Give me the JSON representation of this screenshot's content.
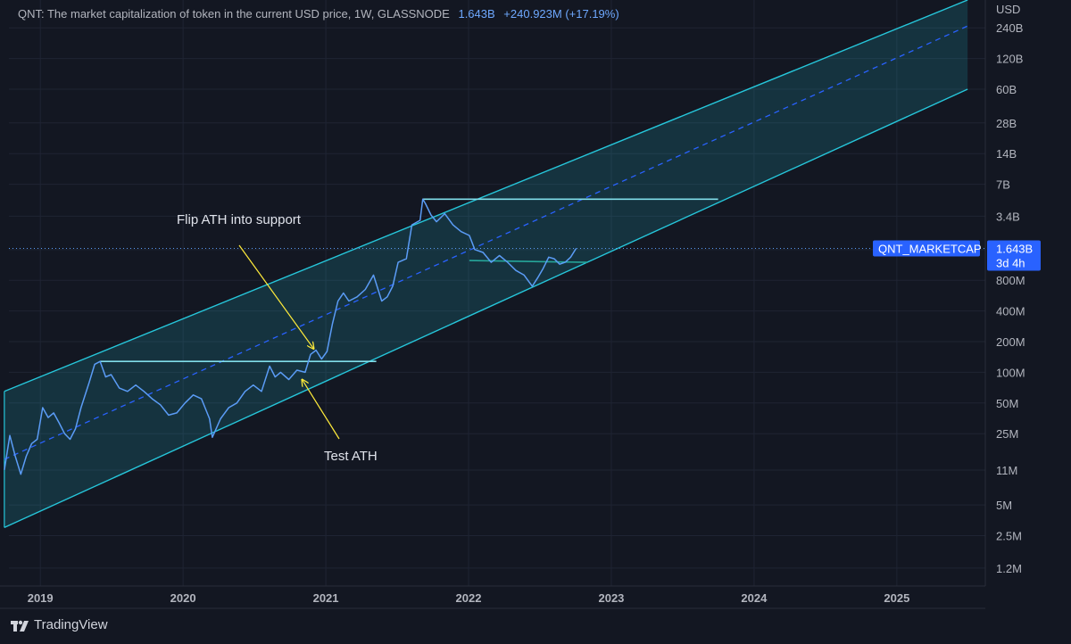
{
  "header": {
    "title": "QNT: The market capitalization of token in the current USD price, 1W, GLASSNODE",
    "last_value": "1.643B",
    "change": "+240.923M (+17.19%)"
  },
  "brand": {
    "label": "TradingView"
  },
  "colors": {
    "background": "#131722",
    "series": "#5b9cf6",
    "channel": "#26c6da",
    "ath_line": "#80deea",
    "support_line": "#26a69a",
    "midline": "#2962ff",
    "arrow": "#ffeb3b",
    "price_tag": "#2962ff"
  },
  "chart_data": {
    "type": "line",
    "title": "QNT: The market capitalization of token in the current USD price, 1W, GLASSNODE",
    "y_scale": "log",
    "y_unit": "USD",
    "y_tick_labels": [
      "240B",
      "120B",
      "60B",
      "28B",
      "14B",
      "7B",
      "3.4B",
      "1.6B",
      "800M",
      "400M",
      "200M",
      "100M",
      "50M",
      "25M",
      "11M",
      "5M",
      "2.5M",
      "1.2M"
    ],
    "y_tick_values": [
      240000000000.0,
      120000000000.0,
      60000000000.0,
      28000000000.0,
      14000000000.0,
      7000000000.0,
      3400000000.0,
      1600000000.0,
      800000000.0,
      400000000.0,
      200000000.0,
      100000000.0,
      50000000.0,
      25000000.0,
      11000000.0,
      5000000.0,
      2500000.0,
      1200000.0
    ],
    "x_tick_labels": [
      "2019",
      "2020",
      "2021",
      "2022",
      "2023",
      "2024",
      "2025"
    ],
    "x_range": [
      2018.78,
      2025.62
    ],
    "y_range": [
      800000.0,
      450000000000.0
    ],
    "grid": true,
    "series": [
      {
        "name": "QNT_MARKETCAP",
        "last_value": "1.643B",
        "countdown": "3d 4h",
        "points": [
          [
            "2018-10-01",
            11000000.0
          ],
          [
            "2018-10-15",
            24000000.0
          ],
          [
            "2018-10-29",
            15000000.0
          ],
          [
            "2018-11-12",
            10000000.0
          ],
          [
            "2018-11-26",
            15000000.0
          ],
          [
            "2018-12-10",
            20000000.0
          ],
          [
            "2018-12-24",
            22000000.0
          ],
          [
            "2019-01-07",
            45000000.0
          ],
          [
            "2019-01-21",
            36000000.0
          ],
          [
            "2019-02-04",
            40000000.0
          ],
          [
            "2019-02-18",
            32000000.0
          ],
          [
            "2019-03-04",
            25000000.0
          ],
          [
            "2019-03-18",
            22000000.0
          ],
          [
            "2019-04-01",
            28000000.0
          ],
          [
            "2019-04-15",
            45000000.0
          ],
          [
            "2019-05-06",
            80000000.0
          ],
          [
            "2019-05-20",
            120000000.0
          ],
          [
            "2019-06-03",
            128000000.0
          ],
          [
            "2019-06-17",
            90000000.0
          ],
          [
            "2019-07-01",
            95000000.0
          ],
          [
            "2019-07-22",
            70000000.0
          ],
          [
            "2019-08-12",
            65000000.0
          ],
          [
            "2019-09-02",
            75000000.0
          ],
          [
            "2019-09-23",
            65000000.0
          ],
          [
            "2019-10-14",
            55000000.0
          ],
          [
            "2019-11-04",
            48000000.0
          ],
          [
            "2019-11-25",
            38000000.0
          ],
          [
            "2019-12-16",
            40000000.0
          ],
          [
            "2020-01-06",
            50000000.0
          ],
          [
            "2020-01-27",
            60000000.0
          ],
          [
            "2020-02-17",
            55000000.0
          ],
          [
            "2020-03-09",
            35000000.0
          ],
          [
            "2020-03-16",
            23000000.0
          ],
          [
            "2020-04-06",
            35000000.0
          ],
          [
            "2020-04-27",
            45000000.0
          ],
          [
            "2020-05-18",
            50000000.0
          ],
          [
            "2020-06-08",
            65000000.0
          ],
          [
            "2020-06-29",
            75000000.0
          ],
          [
            "2020-07-20",
            65000000.0
          ],
          [
            "2020-08-10",
            115000000.0
          ],
          [
            "2020-08-24",
            90000000.0
          ],
          [
            "2020-09-07",
            100000000.0
          ],
          [
            "2020-09-28",
            85000000.0
          ],
          [
            "2020-10-19",
            105000000.0
          ],
          [
            "2020-11-09",
            100000000.0
          ],
          [
            "2020-11-23",
            150000000.0
          ],
          [
            "2020-12-07",
            165000000.0
          ],
          [
            "2020-12-21",
            135000000.0
          ],
          [
            "2021-01-04",
            160000000.0
          ],
          [
            "2021-01-18",
            300000000.0
          ],
          [
            "2021-02-01",
            500000000.0
          ],
          [
            "2021-02-15",
            600000000.0
          ],
          [
            "2021-03-01",
            500000000.0
          ],
          [
            "2021-03-22",
            550000000.0
          ],
          [
            "2021-04-12",
            650000000.0
          ],
          [
            "2021-05-03",
            900000000.0
          ],
          [
            "2021-05-24",
            500000000.0
          ],
          [
            "2021-06-07",
            550000000.0
          ],
          [
            "2021-06-21",
            700000000.0
          ],
          [
            "2021-07-05",
            1200000000.0
          ],
          [
            "2021-07-26",
            1300000000.0
          ],
          [
            "2021-08-09",
            2800000000.0
          ],
          [
            "2021-08-30",
            3100000000.0
          ],
          [
            "2021-09-06",
            5000000000.0
          ],
          [
            "2021-09-13",
            4500000000.0
          ],
          [
            "2021-09-27",
            3500000000.0
          ],
          [
            "2021-10-11",
            3000000000.0
          ],
          [
            "2021-11-01",
            3600000000.0
          ],
          [
            "2021-11-22",
            2800000000.0
          ],
          [
            "2021-12-13",
            2400000000.0
          ],
          [
            "2022-01-03",
            2200000000.0
          ],
          [
            "2022-01-17",
            1600000000.0
          ],
          [
            "2022-02-07",
            1500000000.0
          ],
          [
            "2022-02-28",
            1200000000.0
          ],
          [
            "2022-03-21",
            1400000000.0
          ],
          [
            "2022-04-11",
            1200000000.0
          ],
          [
            "2022-05-02",
            1000000000.0
          ],
          [
            "2022-05-23",
            900000000.0
          ],
          [
            "2022-06-13",
            700000000.0
          ],
          [
            "2022-06-27",
            850000000.0
          ],
          [
            "2022-07-11",
            1050000000.0
          ],
          [
            "2022-07-25",
            1350000000.0
          ],
          [
            "2022-08-08",
            1300000000.0
          ],
          [
            "2022-08-22",
            1150000000.0
          ],
          [
            "2022-09-05",
            1200000000.0
          ],
          [
            "2022-09-19",
            1350000000.0
          ],
          [
            "2022-10-03",
            1643000000.0
          ]
        ]
      }
    ],
    "annotations": {
      "channel_upper": [
        [
          "2018-10-01",
          65000000.0
        ],
        [
          "2025-07-01",
          450000000000.0
        ]
      ],
      "channel_lower": [
        [
          "2018-10-01",
          3000000.0
        ],
        [
          "2025-07-01",
          60000000000.0
        ]
      ],
      "channel_mid": [
        [
          "2018-10-01",
          14000000.0
        ],
        [
          "2025-07-01",
          250000000000.0
        ]
      ],
      "ath_line_2019": [
        [
          "2019-06-03",
          128000000.0
        ],
        [
          "2021-05-10",
          128000000.0
        ]
      ],
      "ath_line_2021": [
        [
          "2021-09-06",
          5000000000.0
        ],
        [
          "2023-10-01",
          5000000000.0
        ]
      ],
      "support_line_2022": [
        [
          "2022-01-03",
          1250000000.0
        ],
        [
          "2022-11-01",
          1200000000.0
        ]
      ],
      "texts": [
        {
          "text": "Flip ATH into support",
          "arrow_to": [
            "2020-12-01",
            170000000.0
          ]
        },
        {
          "text": "Test ATH",
          "arrow_to": [
            "2020-11-01",
            85000000.0
          ]
        }
      ]
    }
  },
  "price_tag": {
    "label": "QNT_MARKETCAP",
    "value": "1.643B",
    "countdown": "3d 4h"
  }
}
